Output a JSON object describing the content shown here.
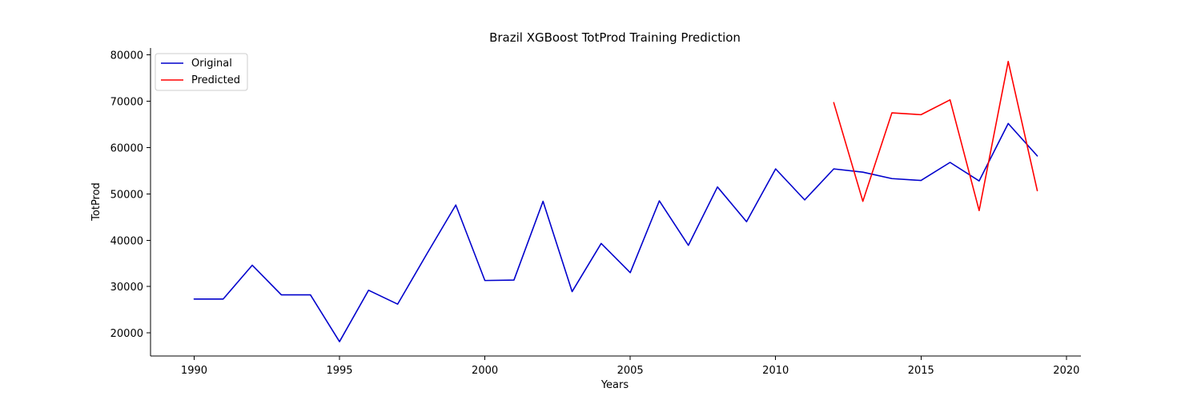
{
  "chart_data": {
    "type": "line",
    "title": "Brazil XGBoost TotProd Training Prediction",
    "xlabel": "Years",
    "ylabel": "TotProd",
    "xlim": [
      1988.5,
      2020.5
    ],
    "ylim": [
      15000,
      81500
    ],
    "x_ticks": [
      1990,
      1995,
      2000,
      2005,
      2010,
      2015,
      2020
    ],
    "y_ticks": [
      20000,
      30000,
      40000,
      50000,
      60000,
      70000,
      80000
    ],
    "legend_position": "top-left",
    "grid": false,
    "series": [
      {
        "name": "Original",
        "color": "#0000cc",
        "x": [
          1990,
          1991,
          1992,
          1993,
          1994,
          1995,
          1996,
          1997,
          1998,
          1999,
          2000,
          2001,
          2002,
          2003,
          2004,
          2005,
          2006,
          2007,
          2008,
          2009,
          2010,
          2011,
          2012,
          2013,
          2014,
          2015,
          2016,
          2017,
          2018,
          2019
        ],
        "y": [
          27300,
          27300,
          34600,
          28200,
          28200,
          18100,
          29200,
          26200,
          37000,
          47600,
          31300,
          31400,
          48400,
          28900,
          39300,
          33000,
          48500,
          38900,
          51500,
          44000,
          55400,
          48700,
          55400,
          54700,
          53300,
          52900,
          56800,
          52800,
          65200,
          58200
        ]
      },
      {
        "name": "Predicted",
        "color": "#ff0000",
        "x": [
          2012,
          2013,
          2014,
          2015,
          2016,
          2017,
          2018,
          2019
        ],
        "y": [
          69700,
          48400,
          67500,
          67100,
          70300,
          46400,
          78600,
          50700
        ]
      }
    ]
  }
}
